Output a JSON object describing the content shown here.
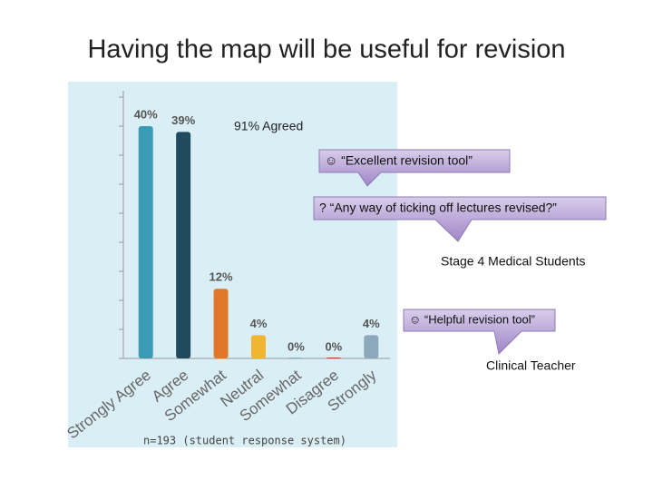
{
  "chart_data": {
    "type": "bar",
    "title": "Having the map will be useful for revision",
    "categories": [
      "Strongly Agree",
      "Agree",
      "Somewhat",
      "Neutral",
      "Somewhat",
      "Disagree",
      "Strongly"
    ],
    "values": [
      40,
      39,
      12,
      4,
      0,
      0,
      4
    ],
    "value_labels": [
      "40%",
      "39%",
      "12%",
      "4%",
      "0%",
      "0%",
      "4%"
    ],
    "colors": [
      "#3a9cb4",
      "#1f4b5c",
      "#e0782a",
      "#f2b531",
      "#7fb3c7",
      "#c0392b",
      "#8da7bb"
    ],
    "ylim": [
      0,
      45
    ],
    "yticks": [
      0,
      5,
      10,
      15,
      20,
      25,
      30,
      35,
      40,
      45
    ],
    "agreed": "91% Agreed",
    "callouts": [
      "☺ “Excellent revision tool”",
      "? “Any way of ticking off lectures revised?”",
      "☺ “Helpful revision tool”"
    ],
    "sources": [
      "Stage 4  Medical Students",
      "Clinical Teacher"
    ],
    "note": "n=193 (student response system)"
  }
}
